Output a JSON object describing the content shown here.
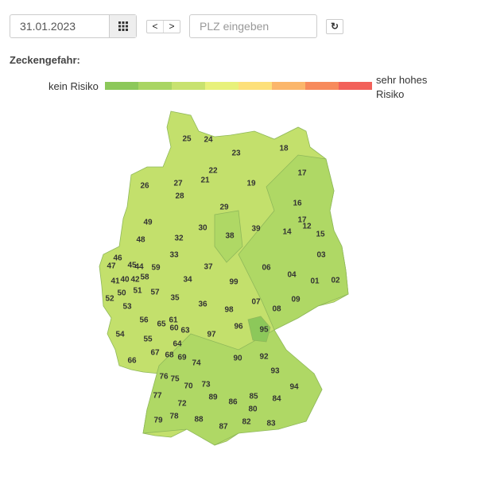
{
  "controls": {
    "date_value": "31.01.2023",
    "prev_label": "<",
    "next_label": ">",
    "plz_placeholder": "PLZ eingeben",
    "calendar_icon": "grid-calendar-icon",
    "refresh_icon": "refresh-icon"
  },
  "legend": {
    "title": "Zeckengefahr:",
    "low_label": "kein Risiko",
    "high_label": "sehr hohes Risiko",
    "colors": [
      "#8cc85a",
      "#a9d563",
      "#c8e26f",
      "#e8f17b",
      "#fde07a",
      "#fbb66b",
      "#f78a5c",
      "#f2615a"
    ]
  },
  "map": {
    "base_color": "#c3e06c",
    "mid_color": "#afd865",
    "dark_color": "#8cc85a",
    "regions": [
      "25",
      "24",
      "23",
      "18",
      "22",
      "21",
      "17",
      "26",
      "27",
      "19",
      "28",
      "16",
      "29",
      "49",
      "30",
      "17",
      "12",
      "39",
      "14",
      "15",
      "38",
      "48",
      "32",
      "46",
      "45",
      "44",
      "59",
      "33",
      "03",
      "47",
      "58",
      "37",
      "06",
      "04",
      "41",
      "40",
      "42",
      "34",
      "99",
      "01",
      "02",
      "52",
      "50",
      "51",
      "57",
      "53",
      "35",
      "36",
      "07",
      "09",
      "98",
      "08",
      "56",
      "61",
      "65",
      "60",
      "63",
      "96",
      "95",
      "54",
      "55",
      "64",
      "97",
      "67",
      "68",
      "69",
      "90",
      "92",
      "66",
      "74",
      "93",
      "76",
      "75",
      "70",
      "73",
      "94",
      "77",
      "89",
      "85",
      "84",
      "72",
      "86",
      "80",
      "79",
      "78",
      "88",
      "87",
      "82",
      "83"
    ]
  }
}
